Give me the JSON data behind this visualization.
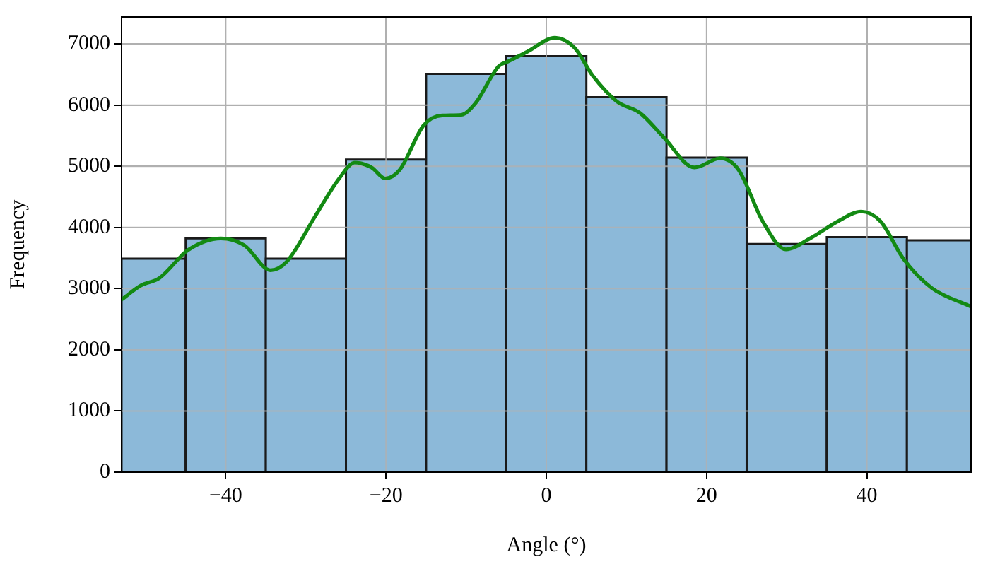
{
  "chart_data": {
    "type": "histogram",
    "xlabel": "Angle (°)",
    "ylabel": "Frequency",
    "xlim": [
      -53,
      53
    ],
    "ylim": [
      0,
      7440
    ],
    "xticks": [
      {
        "value": -40,
        "label": "−40"
      },
      {
        "value": -20,
        "label": "−20"
      },
      0,
      20,
      40
    ],
    "yticks": [
      0,
      1000,
      2000,
      3000,
      4000,
      5000,
      6000,
      7000
    ],
    "grid": true,
    "legend": false,
    "series": [
      {
        "type": "histogram",
        "color": "#8cb9d9",
        "bins": [
          -53,
          -45,
          -35,
          -25,
          -15,
          -5,
          5,
          15,
          25,
          35,
          45,
          53
        ],
        "values": [
          3490,
          3820,
          3490,
          5110,
          6510,
          6800,
          6130,
          5140,
          3730,
          3840,
          3790
        ]
      },
      {
        "type": "line",
        "color": "#138a13",
        "x": [
          -53,
          -50.6,
          -48.3,
          -44.7,
          -40.6,
          -37.7,
          -34.4,
          -32.4,
          -28.9,
          -25.9,
          -23.9,
          -21.8,
          -20.1,
          -18.3,
          -15.3,
          -13,
          -10.6,
          -8.9,
          -5.9,
          -4.8,
          -2.4,
          1.1,
          3.5,
          5.8,
          8.8,
          11.7,
          14.6,
          18.5,
          21.7,
          24,
          27,
          29.9,
          32.9,
          36.4,
          39.3,
          41.7,
          44.6,
          48.1,
          52.9
        ],
        "values": [
          2820,
          3050,
          3170,
          3630,
          3820,
          3710,
          3300,
          3440,
          4170,
          4790,
          5060,
          4980,
          4800,
          4940,
          5670,
          5830,
          5840,
          6020,
          6640,
          6710,
          6870,
          7100,
          6940,
          6480,
          6060,
          5870,
          5480,
          4980,
          5130,
          4940,
          4100,
          3640,
          3820,
          4100,
          4260,
          4100,
          3480,
          3010,
          2710
        ]
      }
    ]
  }
}
